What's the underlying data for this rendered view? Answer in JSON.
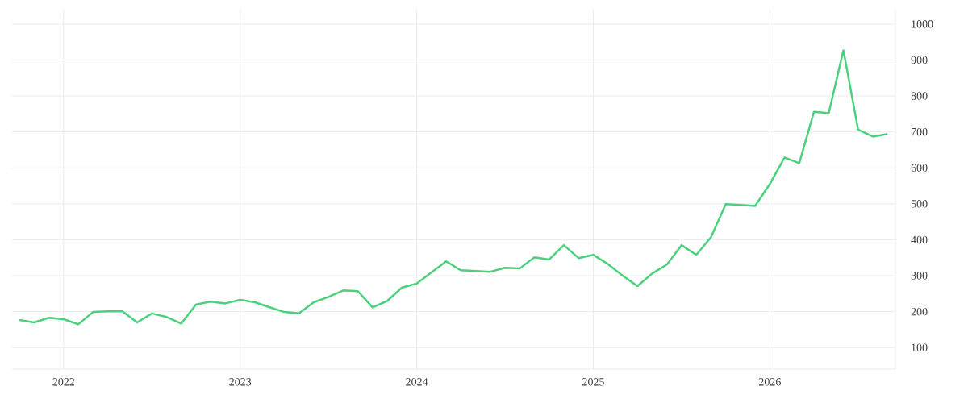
{
  "chart_data": {
    "type": "line",
    "color": "#4cd07d",
    "grid": true,
    "marker": "none",
    "line_style": "solid",
    "x": [
      "2021-10",
      "2021-11",
      "2021-12",
      "2022-01",
      "2022-02",
      "2022-03",
      "2022-04",
      "2022-05",
      "2022-06",
      "2022-07",
      "2022-08",
      "2022-09",
      "2022-10",
      "2022-11",
      "2022-12",
      "2023-01",
      "2023-02",
      "2023-03",
      "2023-04",
      "2023-05",
      "2023-06",
      "2023-07",
      "2023-08",
      "2023-09",
      "2023-10",
      "2023-11",
      "2023-12",
      "2024-01",
      "2024-02",
      "2024-03",
      "2024-04",
      "2024-05",
      "2024-06",
      "2024-07",
      "2024-08",
      "2024-09",
      "2024-10",
      "2024-11",
      "2024-12",
      "2025-01",
      "2025-02",
      "2025-03",
      "2025-04",
      "2025-05",
      "2025-06",
      "2025-07",
      "2025-08",
      "2025-09",
      "2025-10",
      "2025-11",
      "2025-12",
      "2026-01",
      "2026-02",
      "2026-03",
      "2026-04",
      "2026-05",
      "2026-06",
      "2026-07",
      "2026-08",
      "2026-09"
    ],
    "values": [
      177,
      170,
      183,
      179,
      165,
      199,
      201,
      201,
      170,
      195,
      185,
      167,
      220,
      228,
      223,
      233,
      226,
      212,
      199,
      195,
      226,
      241,
      259,
      257,
      212,
      230,
      267,
      278,
      309,
      340,
      315,
      313,
      311,
      322,
      320,
      351,
      345,
      385,
      349,
      358,
      332,
      300,
      271,
      306,
      331,
      385,
      358,
      407,
      499,
      497,
      494,
      555,
      629,
      613,
      756,
      752,
      927,
      706,
      687,
      694
    ],
    "xlim": [
      "2021-09-16",
      "2026-09-17"
    ],
    "xticks": [
      {
        "value": "2022",
        "label": "2022"
      },
      {
        "value": "2023",
        "label": "2023"
      },
      {
        "value": "2024",
        "label": "2024"
      },
      {
        "value": "2025",
        "label": "2025"
      },
      {
        "value": "2026",
        "label": "2026"
      }
    ],
    "ylim": [
      40,
      1040
    ],
    "yticks": [
      100,
      200,
      300,
      400,
      500,
      600,
      700,
      800,
      900,
      1000
    ]
  }
}
